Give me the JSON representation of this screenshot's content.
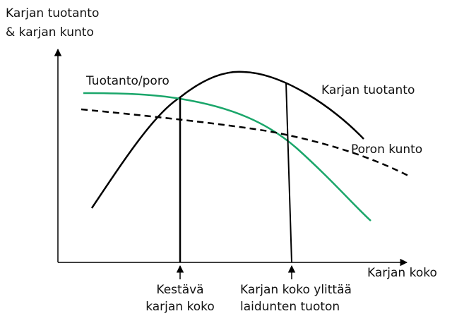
{
  "axes": {
    "y_label": [
      "Karjan tuotanto",
      "& karjan kunto"
    ],
    "x_label": "Karjan koko"
  },
  "curves": [
    {
      "label": "Tuotanto/poro"
    },
    {
      "label": "Karjan tuotanto"
    },
    {
      "label": "Poron kunto"
    }
  ],
  "markers": [
    {
      "label": [
        "Kestävä",
        "karjan koko"
      ]
    },
    {
      "label": [
        "Karjan koko ylittää",
        "laidunten tuoton"
      ]
    }
  ]
}
